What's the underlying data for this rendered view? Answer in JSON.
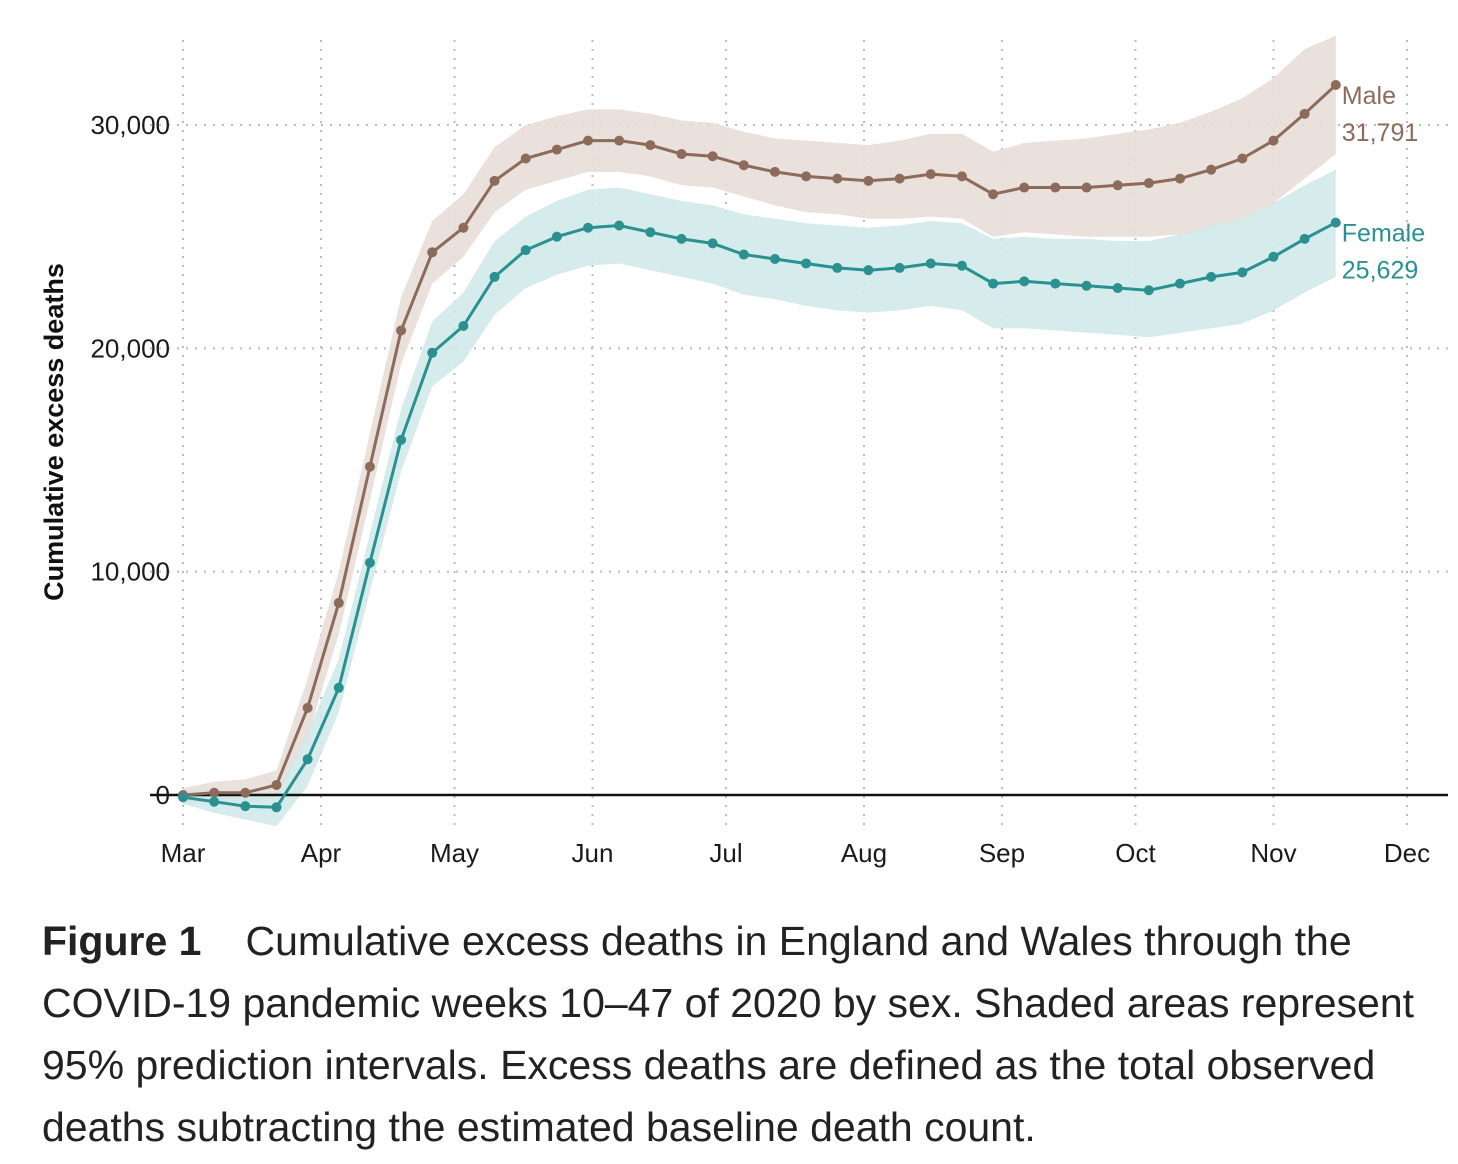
{
  "chart_data": {
    "type": "line",
    "xlabel": "",
    "ylabel": "Cumulative excess deaths",
    "ylim": [
      -1500,
      34000
    ],
    "yticks": [
      0,
      10000,
      20000,
      30000
    ],
    "ytick_labels": [
      "0",
      "10,000",
      "20,000",
      "30,000"
    ],
    "month_labels": [
      "Mar",
      "Apr",
      "May",
      "Jun",
      "Jul",
      "Aug",
      "Sep",
      "Oct",
      "Nov",
      "Dec"
    ],
    "month_start_dates": [
      "2020-03-01",
      "2020-04-01",
      "2020-05-01",
      "2020-06-01",
      "2020-07-01",
      "2020-08-01",
      "2020-09-01",
      "2020-10-01",
      "2020-11-01",
      "2020-12-01"
    ],
    "grid": true,
    "legend": "none",
    "x": [
      "2020-03-01",
      "2020-03-08",
      "2020-03-15",
      "2020-03-22",
      "2020-03-29",
      "2020-04-05",
      "2020-04-12",
      "2020-04-19",
      "2020-04-26",
      "2020-05-03",
      "2020-05-10",
      "2020-05-17",
      "2020-05-24",
      "2020-05-31",
      "2020-06-07",
      "2020-06-14",
      "2020-06-21",
      "2020-06-28",
      "2020-07-05",
      "2020-07-12",
      "2020-07-19",
      "2020-07-26",
      "2020-08-02",
      "2020-08-09",
      "2020-08-16",
      "2020-08-23",
      "2020-08-30",
      "2020-09-06",
      "2020-09-13",
      "2020-09-20",
      "2020-09-27",
      "2020-10-04",
      "2020-10-11",
      "2020-10-18",
      "2020-10-25",
      "2020-11-01",
      "2020-11-08",
      "2020-11-15"
    ],
    "series": [
      {
        "name": "Male",
        "end_value_label": "31,791",
        "color": "#8c6b5a",
        "band_color": "#e6dad6",
        "values": [
          0,
          100,
          100,
          450,
          3900,
          8600,
          14700,
          20800,
          24300,
          25400,
          27500,
          28500,
          28900,
          29300,
          29300,
          29100,
          28700,
          28600,
          28200,
          27900,
          27700,
          27600,
          27500,
          27600,
          27800,
          27700,
          26900,
          27200,
          27200,
          27200,
          27300,
          27400,
          27600,
          28000,
          28500,
          29300,
          30500,
          31791
        ],
        "lower": [
          -400,
          -350,
          -350,
          -100,
          2600,
          7200,
          13200,
          19300,
          22900,
          24100,
          26100,
          27100,
          27500,
          27900,
          27900,
          27700,
          27300,
          27200,
          26800,
          26400,
          26100,
          26000,
          25800,
          25800,
          25900,
          25800,
          25000,
          25200,
          25100,
          25000,
          25000,
          25000,
          25100,
          25400,
          25800,
          26500,
          27600,
          28700
        ],
        "upper": [
          300,
          600,
          700,
          1100,
          5200,
          10000,
          16200,
          22300,
          25700,
          26900,
          29000,
          30000,
          30400,
          30700,
          30700,
          30500,
          30200,
          30100,
          29700,
          29400,
          29300,
          29200,
          29100,
          29300,
          29600,
          29600,
          28800,
          29200,
          29300,
          29400,
          29600,
          29800,
          30100,
          30600,
          31200,
          32100,
          33400,
          34000
        ]
      },
      {
        "name": "Female",
        "end_value_label": "25,629",
        "color": "#2a9090",
        "band_color": "#cfe7e7",
        "values": [
          -100,
          -300,
          -500,
          -550,
          1600,
          4800,
          10400,
          15900,
          19800,
          21000,
          23200,
          24400,
          25000,
          25400,
          25500,
          25200,
          24900,
          24700,
          24200,
          24000,
          23800,
          23600,
          23500,
          23600,
          23800,
          23700,
          22900,
          23000,
          22900,
          22800,
          22700,
          22600,
          22900,
          23200,
          23400,
          24100,
          24900,
          25629
        ],
        "lower": [
          -400,
          -800,
          -1100,
          -1400,
          400,
          3700,
          9100,
          14500,
          18300,
          19400,
          21500,
          22700,
          23300,
          23700,
          23800,
          23500,
          23200,
          22900,
          22400,
          22200,
          21900,
          21700,
          21600,
          21700,
          21900,
          21700,
          20900,
          20900,
          20800,
          20700,
          20600,
          20500,
          20700,
          20900,
          21100,
          21700,
          22500,
          23200
        ],
        "upper": [
          200,
          200,
          100,
          100,
          2800,
          6100,
          11700,
          17300,
          21200,
          22500,
          24800,
          25900,
          26600,
          27100,
          27200,
          26900,
          26600,
          26400,
          26000,
          25800,
          25600,
          25500,
          25400,
          25500,
          25700,
          25600,
          24900,
          25000,
          24900,
          24900,
          24800,
          24800,
          25100,
          25500,
          25800,
          26500,
          27300,
          28000
        ]
      }
    ]
  },
  "caption": {
    "label": "Figure 1",
    "text": "Cumulative excess deaths in England and Wales through the COVID-19 pandemic weeks 10–47 of 2020 by sex. Shaded areas represent 95% prediction intervals. Excess deaths are defined as the total observed deaths subtracting the estimated baseline death count."
  }
}
